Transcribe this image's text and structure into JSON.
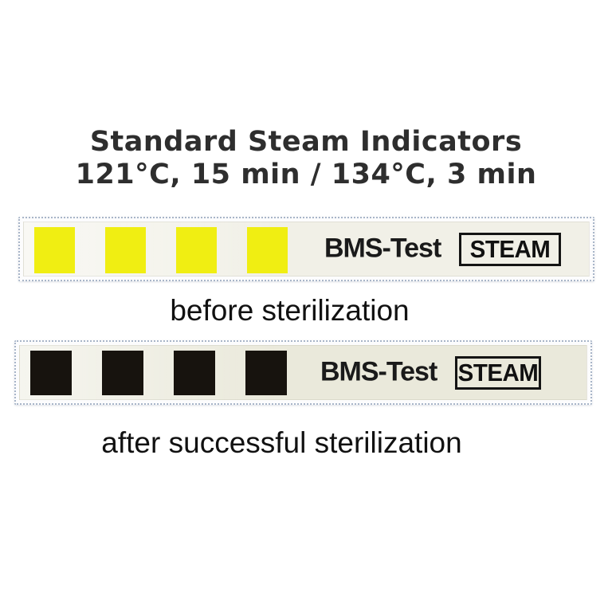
{
  "title": {
    "line1": "Standard Steam Indicators",
    "line2": "121°C, 15 min / 134°C, 3 min"
  },
  "strips": [
    {
      "state": "before",
      "brand_label": "BMS-Test",
      "badge_label": "STEAM",
      "squares_count": 4,
      "indicator_color": "#f0ee12",
      "strip_background": "#f1f0e7",
      "caption": "before sterilization"
    },
    {
      "state": "after",
      "brand_label": "BMS-Test",
      "badge_label": "STEAM",
      "squares_count": 4,
      "indicator_color": "#17130e",
      "strip_background": "#eae9db",
      "caption": "after successful sterilization"
    }
  ],
  "colors": {
    "title_text": "#2e2e2e",
    "caption_text": "#111111",
    "perforation_edge": "#a8b5c8",
    "badge_border": "#141414"
  }
}
